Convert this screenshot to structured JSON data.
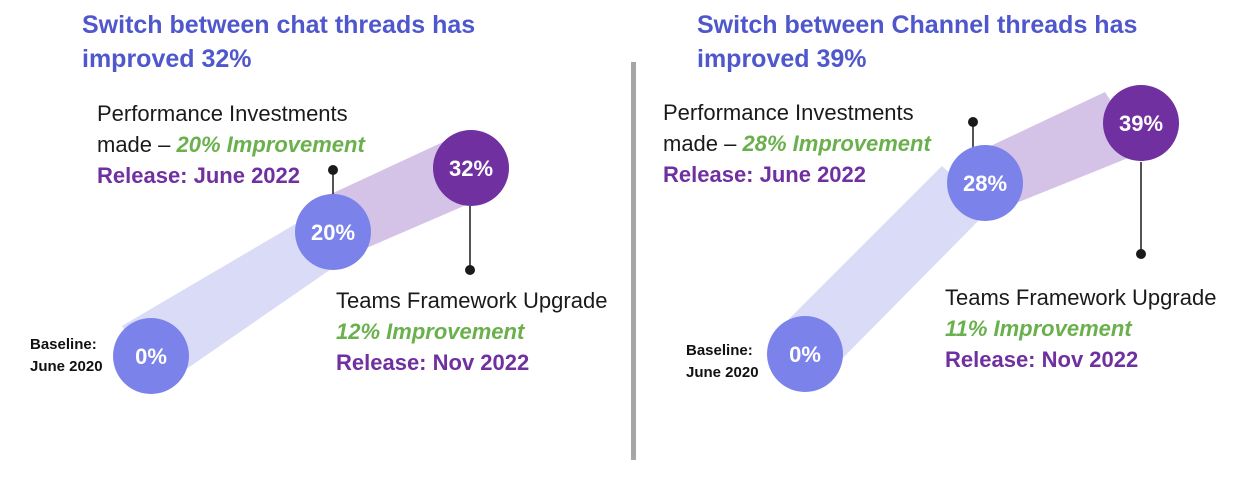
{
  "colors": {
    "title": "#4f57cc",
    "improvement": "#6ab04c",
    "release": "#7030a0",
    "circle_light": "#7b83eb",
    "circle_dark": "#7030a0",
    "band_light": "#d9dbf7",
    "band_mid": "#d4c3e6",
    "divider": "#a6a6a6"
  },
  "panels": [
    {
      "title_line1": "Switch between chat threads has",
      "title_line2": "improved 32%",
      "milestones": [
        {
          "label": "0%"
        },
        {
          "label": "20%"
        },
        {
          "label": "32%"
        }
      ],
      "baseline": {
        "line1": "Baseline:",
        "line2": "June 2020"
      },
      "investment": {
        "line1": "Performance Investments",
        "prefix": "made – ",
        "improvement": "20% Improvement",
        "release": "Release: June 2022"
      },
      "upgrade": {
        "line1": "Teams Framework Upgrade",
        "improvement": "12% Improvement",
        "release": "Release: Nov 2022"
      }
    },
    {
      "title_line1": "Switch between Channel threads has",
      "title_line2": "improved 39%",
      "milestones": [
        {
          "label": "0%"
        },
        {
          "label": "28%"
        },
        {
          "label": "39%"
        }
      ],
      "baseline": {
        "line1": "Baseline:",
        "line2": "June 2020"
      },
      "investment": {
        "line1": "Performance Investments",
        "prefix": "made – ",
        "improvement": "28% Improvement",
        "release": "Release: June 2022"
      },
      "upgrade": {
        "line1": "Teams Framework Upgrade",
        "improvement": "11% Improvement",
        "release": "Release: Nov 2022"
      }
    }
  ]
}
